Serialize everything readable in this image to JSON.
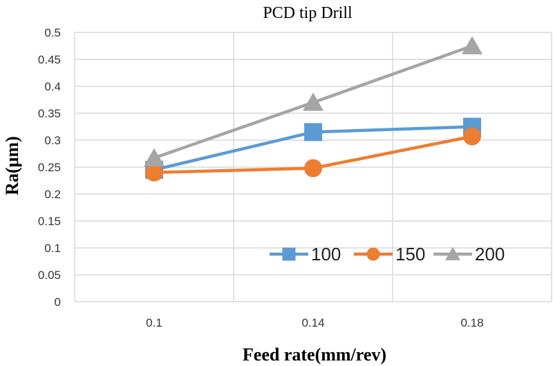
{
  "chart_data": {
    "type": "line",
    "title": "PCD tip  Drill",
    "xlabel": "Feed rate(mm/rev)",
    "ylabel": "Ra(μm)",
    "categories": [
      "0.1",
      "0.14",
      "0.18"
    ],
    "y_ticks": [
      "0",
      "0.05",
      "0.1",
      "0.15",
      "0.2",
      "0.25",
      "0.3",
      "0.35",
      "0.4",
      "0.45",
      "0.5"
    ],
    "ylim": [
      0,
      0.5
    ],
    "grid": true,
    "legend_position": "bottom-right inside plot",
    "series": [
      {
        "name": "100",
        "values": [
          0.245,
          0.315,
          0.325
        ],
        "color": "#5B9BD5",
        "marker": "square"
      },
      {
        "name": "150",
        "values": [
          0.24,
          0.248,
          0.307
        ],
        "color": "#ED7D31",
        "marker": "circle"
      },
      {
        "name": "200",
        "values": [
          0.267,
          0.37,
          0.475
        ],
        "color": "#A5A5A5",
        "marker": "triangle"
      }
    ]
  }
}
